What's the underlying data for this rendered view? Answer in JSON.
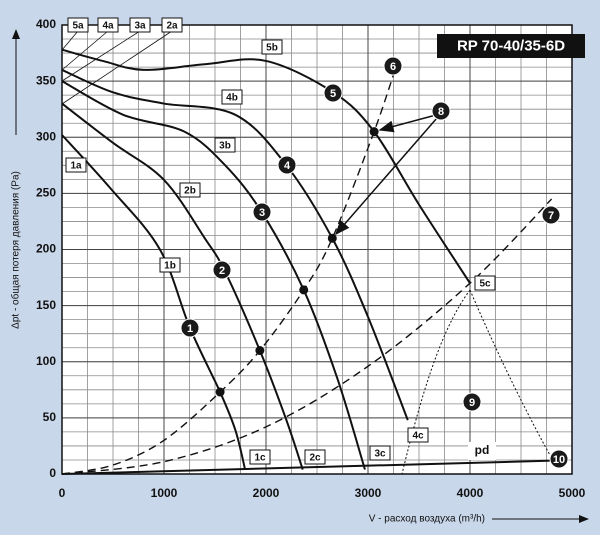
{
  "chart_data": {
    "type": "line",
    "title": "RP 70-40/35-6D",
    "x_label": "V - расход воздуха (m³/h)",
    "y_label": "Δpt - общая потеря давления (Pa)",
    "xlim": [
      0,
      5000
    ],
    "ylim": [
      0,
      400
    ],
    "xticks": [
      0,
      1000,
      2000,
      3000,
      4000,
      5000
    ],
    "yticks": [
      0,
      50,
      100,
      150,
      200,
      250,
      300,
      350,
      400
    ],
    "grid": true,
    "minor_grid": {
      "x": 250,
      "y": 12.5
    },
    "series": [
      {
        "name": "1",
        "color": "#111111",
        "style": "solid",
        "x": [
          0,
          470,
          960,
          1255,
          1550,
          1700,
          1795
        ],
        "values": [
          302,
          255,
          200,
          130,
          73,
          39,
          4
        ]
      },
      {
        "name": "2",
        "color": "#111111",
        "style": "solid",
        "x": [
          0,
          500,
          1000,
          1400,
          1600,
          1940,
          2200,
          2360
        ],
        "values": [
          330,
          295,
          262,
          210,
          180,
          110,
          48,
          4
        ]
      },
      {
        "name": "3",
        "color": "#111111",
        "style": "solid",
        "x": [
          0,
          600,
          1200,
          1600,
          1960,
          2370,
          2700,
          2970
        ],
        "values": [
          350,
          320,
          305,
          275,
          233,
          164,
          85,
          4
        ]
      },
      {
        "name": "4",
        "color": "#111111",
        "style": "solid",
        "x": [
          0,
          500,
          1000,
          1700,
          2200,
          2650,
          3000,
          3390
        ],
        "values": [
          360,
          340,
          330,
          320,
          275,
          210,
          140,
          48
        ]
      },
      {
        "name": "5",
        "color": "#111111",
        "style": "solid",
        "x": [
          0,
          400,
          800,
          1400,
          2000,
          2660,
          3060,
          3500,
          4000
        ],
        "values": [
          378,
          368,
          360,
          365,
          368,
          340,
          305,
          240,
          170
        ]
      },
      {
        "name": "6",
        "color": "#111111",
        "style": "dashed",
        "x": [
          0,
          500,
          1000,
          1550,
          1940,
          2370,
          2650,
          3060,
          3300
        ],
        "values": [
          0,
          8,
          30,
          73,
          110,
          164,
          210,
          305,
          370
        ],
        "markers": [
          false,
          false,
          false,
          true,
          true,
          true,
          true,
          true,
          false
        ]
      },
      {
        "name": "7",
        "color": "#111111",
        "style": "dashed",
        "x": [
          0,
          1000,
          2000,
          3000,
          4000,
          4800
        ],
        "values": [
          0,
          11,
          42,
          96,
          170,
          245
        ]
      },
      {
        "name": "10",
        "color": "#111111",
        "style": "solid",
        "x": [
          0,
          4850
        ],
        "values": [
          0,
          12
        ]
      }
    ],
    "other_markers": [
      "8",
      "9"
    ],
    "box_labels": [
      "5a",
      "4a",
      "3a",
      "2a",
      "1a",
      "1b",
      "2b",
      "3b",
      "4b",
      "5b",
      "1c",
      "2c",
      "3c",
      "4c",
      "5c"
    ],
    "pressure_label": "pd"
  }
}
